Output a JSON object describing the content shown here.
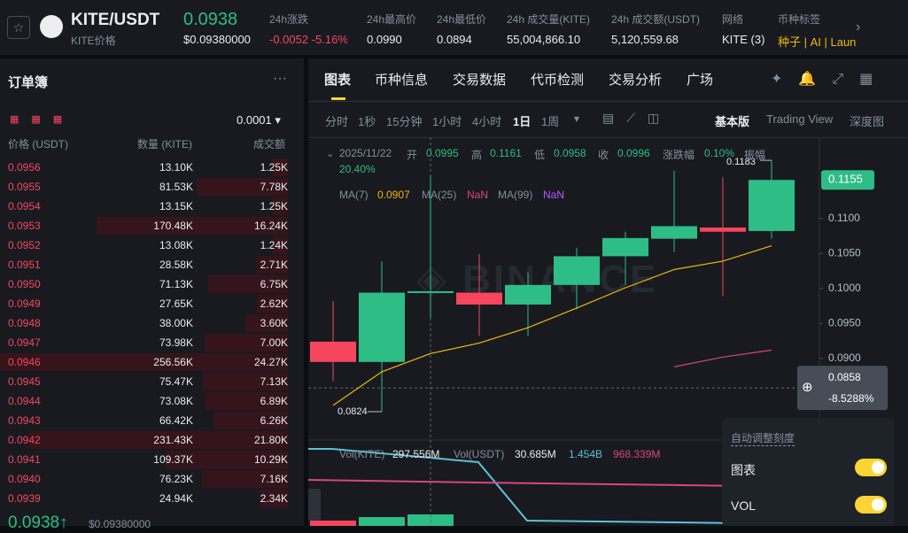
{
  "header": {
    "pair": "KITE/USDT",
    "pair_sub": "KITE价格",
    "price": "0.0938",
    "price_usd": "$0.09380000",
    "stats": [
      {
        "label": "24h涨跌",
        "value": "-0.0052 -5.16%"
      },
      {
        "label": "24h最高价",
        "value": "0.0990"
      },
      {
        "label": "24h最低价",
        "value": "0.0894"
      },
      {
        "label": "24h 成交量(KITE)",
        "value": "55,004,866.10"
      },
      {
        "label": "24h 成交额(USDT)",
        "value": "5,120,559.68"
      },
      {
        "label": "网络",
        "value": "KITE (3)"
      },
      {
        "label": "币种标签",
        "value": "种子 | AI | Launc"
      }
    ]
  },
  "orderbook": {
    "title": "订单簿",
    "tick": "0.0001",
    "columns": [
      "价格 (USDT)",
      "数量 (KITE)",
      "成交额"
    ],
    "rows": [
      [
        "0.0956",
        "13.10K",
        "1.25K"
      ],
      [
        "0.0955",
        "81.53K",
        "7.78K"
      ],
      [
        "0.0954",
        "13.15K",
        "1.25K"
      ],
      [
        "0.0953",
        "170.48K",
        "16.24K"
      ],
      [
        "0.0952",
        "13.08K",
        "1.24K"
      ],
      [
        "0.0951",
        "28.58K",
        "2.71K"
      ],
      [
        "0.0950",
        "71.13K",
        "6.75K"
      ],
      [
        "0.0949",
        "27.65K",
        "2.62K"
      ],
      [
        "0.0948",
        "38.00K",
        "3.60K"
      ],
      [
        "0.0947",
        "73.98K",
        "7.00K"
      ],
      [
        "0.0946",
        "256.56K",
        "24.27K"
      ],
      [
        "0.0945",
        "75.47K",
        "7.13K"
      ],
      [
        "0.0944",
        "73.08K",
        "6.89K"
      ],
      [
        "0.0943",
        "66.42K",
        "6.26K"
      ],
      [
        "0.0942",
        "231.43K",
        "21.80K"
      ],
      [
        "0.0941",
        "109.37K",
        "10.29K"
      ],
      [
        "0.0940",
        "76.23K",
        "7.16K"
      ],
      [
        "0.0939",
        "24.94K",
        "2.34K"
      ]
    ],
    "depth": [
      13.1,
      81.53,
      13.15,
      170.48,
      13.08,
      28.58,
      71.13,
      27.65,
      38.0,
      73.98,
      256.56,
      75.47,
      73.08,
      66.42,
      231.43,
      109.37,
      76.23,
      24.94
    ],
    "last_price": "0.0938",
    "last_usd": "$0.09380000"
  },
  "tabs": [
    "图表",
    "币种信息",
    "交易数据",
    "代币检测",
    "交易分析",
    "广场"
  ],
  "intervals": [
    "分时",
    "1秒",
    "15分钟",
    "1小时",
    "4小时",
    "1日",
    "1周"
  ],
  "views": [
    "基本版",
    "Trading View",
    "深度图"
  ],
  "chart": {
    "info": [
      "2025/11/22",
      "开",
      "0.0995",
      "高",
      "0.1161",
      "低",
      "0.0958",
      "收",
      "0.0996",
      "涨跌幅",
      "0.10%",
      "振幅",
      "20.40%"
    ],
    "ma_labels": [
      "MA(7)",
      "0.0907",
      "MA(25)",
      "NaN",
      "MA(99)",
      "NaN"
    ],
    "ylim": [
      0.0786,
      0.1216
    ],
    "yticks": [
      {
        "value": 0.11,
        "label": "0.1100"
      },
      {
        "value": 0.105,
        "label": "0.1050"
      },
      {
        "value": 0.1,
        "label": "0.1000"
      },
      {
        "value": 0.095,
        "label": "0.0950"
      },
      {
        "value": 0.09,
        "label": "0.0900"
      }
    ],
    "last": {
      "value": 0.1155,
      "label": "0.1155"
    },
    "crosshair": {
      "value": 0.0858,
      "label": "0.0858",
      "change": "-8.5288%"
    },
    "high_mark": {
      "value": 0.1183,
      "label": "0.1183"
    },
    "low_mark": {
      "value": 0.0824,
      "label": "0.0824"
    },
    "open": [
      0.0924,
      0.0895,
      0.0995,
      0.0994,
      0.0977,
      0.1005,
      0.1046,
      0.1071,
      0.1087,
      0.1082
    ],
    "high": [
      0.0982,
      0.1039,
      0.1161,
      0.1049,
      0.1023,
      0.1058,
      0.1081,
      0.1168,
      0.1159,
      0.1183
    ],
    "low": [
      0.0868,
      0.0824,
      0.0958,
      0.0932,
      0.0932,
      0.097,
      0.1005,
      0.1052,
      0.0989,
      0.1071
    ],
    "close": [
      0.0895,
      0.0994,
      0.0996,
      0.0977,
      0.1005,
      0.1046,
      0.1072,
      0.1089,
      0.1081,
      0.1155
    ],
    "ma7": [
      0.0833,
      0.0881,
      0.0907,
      0.0922,
      0.0944,
      0.0972,
      0.1001,
      0.1027,
      0.1039,
      0.1061
    ],
    "ma_b": [
      null,
      null,
      null,
      null,
      null,
      null,
      null,
      0.0888,
      0.0902,
      0.0912
    ],
    "vol_labels": [
      "Vol(KITE)",
      "297.556M",
      "Vol(USDT)",
      "30.685M",
      "1.454B",
      "968.339M"
    ],
    "popup": [
      "自动调整刻度",
      "图表",
      "VOL"
    ]
  }
}
